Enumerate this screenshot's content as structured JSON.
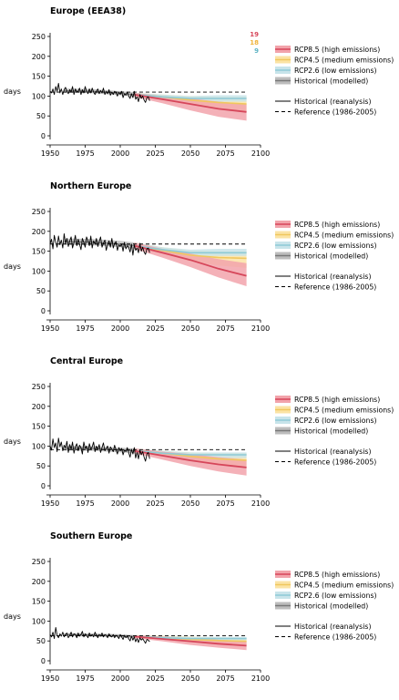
{
  "chart_data": [
    {
      "type": "line",
      "title": "Europe (EEA38)",
      "ylabel": "days",
      "xlim": [
        1950,
        2100
      ],
      "ylim": [
        0,
        250
      ],
      "xticks": [
        1950,
        1975,
        2000,
        2025,
        2050,
        2075,
        2100
      ],
      "yticks": [
        0,
        50,
        100,
        150,
        200,
        250
      ],
      "reference": 110,
      "model_counts": {
        "rcp85": "19",
        "rcp45": "18",
        "rcp26": "9"
      },
      "historical_reanalysis": {
        "x": [
          1950,
          1951,
          1952,
          1953,
          1954,
          1955,
          1956,
          1957,
          1958,
          1959,
          1960,
          1961,
          1962,
          1963,
          1964,
          1965,
          1966,
          1967,
          1968,
          1969,
          1970,
          1971,
          1972,
          1973,
          1974,
          1975,
          1976,
          1977,
          1978,
          1979,
          1980,
          1981,
          1982,
          1983,
          1984,
          1985,
          1986,
          1987,
          1988,
          1989,
          1990,
          1991,
          1992,
          1993,
          1994,
          1995,
          1996,
          1997,
          1998,
          1999,
          2000,
          2001,
          2002,
          2003,
          2004,
          2005,
          2006,
          2007,
          2008,
          2009,
          2010,
          2011,
          2012,
          2013,
          2014,
          2015,
          2016,
          2017,
          2018,
          2019,
          2020,
          2021
        ],
        "y": [
          112,
          108,
          118,
          104,
          124,
          112,
          132,
          108,
          118,
          104,
          116,
          122,
          112,
          106,
          116,
          110,
          124,
          104,
          118,
          110,
          112,
          120,
          104,
          116,
          108,
          124,
          112,
          106,
          118,
          108,
          120,
          110,
          104,
          112,
          118,
          106,
          114,
          108,
          120,
          104,
          112,
          106,
          116,
          102,
          110,
          104,
          112,
          108,
          100,
          110,
          104,
          112,
          96,
          106,
          102,
          110,
          100,
          94,
          106,
          96,
          112,
          92,
          98,
          86,
          104,
          94,
          100,
          90,
          84,
          96,
          98,
          88
        ]
      },
      "historical_modelled": {
        "x": [
          1960,
          1980,
          2000,
          2010
        ],
        "mean": [
          113,
          112,
          107,
          104
        ],
        "lower": [
          108,
          107,
          102,
          98
        ],
        "upper": [
          119,
          118,
          112,
          110
        ]
      },
      "projections": {
        "rcp85": {
          "x": [
            2010,
            2030,
            2050,
            2070,
            2090
          ],
          "mean": [
            104,
            92,
            80,
            68,
            60
          ],
          "lower": [
            98,
            82,
            64,
            48,
            38
          ],
          "upper": [
            108,
            100,
            94,
            86,
            80
          ]
        },
        "rcp45": {
          "x": [
            2010,
            2030,
            2050,
            2070,
            2090
          ],
          "mean": [
            104,
            98,
            90,
            84,
            80
          ],
          "lower": [
            98,
            90,
            78,
            70,
            62
          ],
          "upper": [
            108,
            104,
            100,
            98,
            98
          ]
        },
        "rcp26": {
          "x": [
            2010,
            2030,
            2050,
            2070,
            2090
          ],
          "mean": [
            104,
            98,
            94,
            94,
            94
          ],
          "lower": [
            98,
            92,
            86,
            86,
            86
          ],
          "upper": [
            108,
            104,
            100,
            102,
            102
          ]
        }
      }
    },
    {
      "type": "line",
      "title": "Northern Europe",
      "ylabel": "days",
      "xlim": [
        1950,
        2100
      ],
      "ylim": [
        0,
        250
      ],
      "xticks": [
        1950,
        1975,
        2000,
        2025,
        2050,
        2075,
        2100
      ],
      "yticks": [
        0,
        50,
        100,
        150,
        200,
        250
      ],
      "reference": 168,
      "historical_reanalysis": {
        "x": [
          1950,
          1951,
          1952,
          1953,
          1954,
          1955,
          1956,
          1957,
          1958,
          1959,
          1960,
          1961,
          1962,
          1963,
          1964,
          1965,
          1966,
          1967,
          1968,
          1969,
          1970,
          1971,
          1972,
          1973,
          1974,
          1975,
          1976,
          1977,
          1978,
          1979,
          1980,
          1981,
          1982,
          1983,
          1984,
          1985,
          1986,
          1987,
          1988,
          1989,
          1990,
          1991,
          1992,
          1993,
          1994,
          1995,
          1996,
          1997,
          1998,
          1999,
          2000,
          2001,
          2002,
          2003,
          2004,
          2005,
          2006,
          2007,
          2008,
          2009,
          2010,
          2011,
          2012,
          2013,
          2014,
          2015,
          2016,
          2017,
          2018,
          2019,
          2020,
          2021
        ],
        "y": [
          168,
          180,
          156,
          190,
          172,
          160,
          188,
          166,
          178,
          158,
          194,
          170,
          182,
          162,
          176,
          186,
          158,
          172,
          190,
          164,
          180,
          168,
          154,
          182,
          172,
          160,
          186,
          176,
          164,
          188,
          158,
          176,
          168,
          182,
          162,
          174,
          186,
          160,
          170,
          178,
          152,
          166,
          176,
          160,
          182,
          158,
          170,
          174,
          152,
          166,
          162,
          168,
          150,
          172,
          156,
          164,
          160,
          148,
          168,
          140,
          166,
          152,
          158,
          146,
          170,
          150,
          160,
          148,
          142,
          156,
          158,
          146
        ]
      },
      "historical_modelled": {
        "x": [
          1960,
          1980,
          2000,
          2010
        ],
        "mean": [
          174,
          173,
          168,
          164
        ],
        "lower": [
          166,
          165,
          160,
          156
        ],
        "upper": [
          182,
          181,
          176,
          172
        ]
      },
      "projections": {
        "rcp85": {
          "x": [
            2010,
            2030,
            2050,
            2070,
            2090
          ],
          "mean": [
            164,
            146,
            128,
            106,
            88
          ],
          "lower": [
            156,
            134,
            110,
            84,
            62
          ],
          "upper": [
            172,
            156,
            144,
            130,
            120
          ]
        },
        "rcp45": {
          "x": [
            2010,
            2030,
            2050,
            2070,
            2090
          ],
          "mean": [
            164,
            152,
            140,
            134,
            132
          ],
          "lower": [
            156,
            144,
            124,
            114,
            108
          ],
          "upper": [
            172,
            160,
            152,
            150,
            150
          ]
        },
        "rcp26": {
          "x": [
            2010,
            2030,
            2050,
            2070,
            2090
          ],
          "mean": [
            164,
            154,
            146,
            146,
            146
          ],
          "lower": [
            156,
            146,
            138,
            138,
            138
          ],
          "upper": [
            172,
            160,
            154,
            156,
            156
          ]
        }
      }
    },
    {
      "type": "line",
      "title": "Central Europe",
      "ylabel": "days",
      "xlim": [
        1950,
        2100
      ],
      "ylim": [
        0,
        250
      ],
      "xticks": [
        1950,
        1975,
        2000,
        2025,
        2050,
        2075,
        2100
      ],
      "yticks": [
        0,
        50,
        100,
        150,
        200,
        250
      ],
      "reference": 91,
      "historical_reanalysis": {
        "x": [
          1950,
          1951,
          1952,
          1953,
          1954,
          1955,
          1956,
          1957,
          1958,
          1959,
          1960,
          1961,
          1962,
          1963,
          1964,
          1965,
          1966,
          1967,
          1968,
          1969,
          1970,
          1971,
          1972,
          1973,
          1974,
          1975,
          1976,
          1977,
          1978,
          1979,
          1980,
          1981,
          1982,
          1983,
          1984,
          1985,
          1986,
          1987,
          1988,
          1989,
          1990,
          1991,
          1992,
          1993,
          1994,
          1995,
          1996,
          1997,
          1998,
          1999,
          2000,
          2001,
          2002,
          2003,
          2004,
          2005,
          2006,
          2007,
          2008,
          2009,
          2010,
          2011,
          2012,
          2013,
          2014,
          2015,
          2016,
          2017,
          2018,
          2019,
          2020,
          2021
        ],
        "y": [
          100,
          90,
          118,
          96,
          108,
          86,
          120,
          98,
          110,
          88,
          102,
          96,
          112,
          84,
          104,
          92,
          110,
          82,
          98,
          106,
          88,
          102,
          96,
          80,
          110,
          94,
          100,
          84,
          106,
          92,
          98,
          110,
          86,
          100,
          92,
          104,
          84,
          96,
          108,
          88,
          94,
          100,
          82,
          98,
          92,
          86,
          102,
          90,
          80,
          96,
          88,
          94,
          78,
          90,
          86,
          96,
          84,
          72,
          92,
          80,
          96,
          70,
          84,
          68,
          90,
          78,
          86,
          72,
          62,
          80,
          84,
          68
        ]
      },
      "historical_modelled": {
        "x": [
          1960,
          1980,
          2000,
          2010
        ],
        "mean": [
          95,
          94,
          90,
          88
        ],
        "lower": [
          89,
          88,
          84,
          82
        ],
        "upper": [
          101,
          100,
          96,
          94
        ]
      },
      "projections": {
        "rcp85": {
          "x": [
            2010,
            2030,
            2050,
            2070,
            2090
          ],
          "mean": [
            88,
            76,
            64,
            54,
            46
          ],
          "lower": [
            82,
            66,
            50,
            36,
            26
          ],
          "upper": [
            94,
            86,
            80,
            72,
            66
          ]
        },
        "rcp45": {
          "x": [
            2010,
            2030,
            2050,
            2070,
            2090
          ],
          "mean": [
            88,
            82,
            74,
            68,
            64
          ],
          "lower": [
            82,
            74,
            62,
            54,
            46
          ],
          "upper": [
            94,
            88,
            84,
            82,
            82
          ]
        },
        "rcp26": {
          "x": [
            2010,
            2030,
            2050,
            2070,
            2090
          ],
          "mean": [
            88,
            82,
            78,
            78,
            78
          ],
          "lower": [
            82,
            76,
            70,
            70,
            70
          ],
          "upper": [
            94,
            88,
            84,
            84,
            84
          ]
        }
      }
    },
    {
      "type": "line",
      "title": "Southern Europe",
      "ylabel": "days",
      "xlim": [
        1950,
        2100
      ],
      "ylim": [
        0,
        250
      ],
      "xticks": [
        1950,
        1975,
        2000,
        2025,
        2050,
        2075,
        2100
      ],
      "yticks": [
        0,
        50,
        100,
        150,
        200,
        250
      ],
      "reference": 63,
      "historical_reanalysis": {
        "x": [
          1950,
          1951,
          1952,
          1953,
          1954,
          1955,
          1956,
          1957,
          1958,
          1959,
          1960,
          1961,
          1962,
          1963,
          1964,
          1965,
          1966,
          1967,
          1968,
          1969,
          1970,
          1971,
          1972,
          1973,
          1974,
          1975,
          1976,
          1977,
          1978,
          1979,
          1980,
          1981,
          1982,
          1983,
          1984,
          1985,
          1986,
          1987,
          1988,
          1989,
          1990,
          1991,
          1992,
          1993,
          1994,
          1995,
          1996,
          1997,
          1998,
          1999,
          2000,
          2001,
          2002,
          2003,
          2004,
          2005,
          2006,
          2007,
          2008,
          2009,
          2010,
          2011,
          2012,
          2013,
          2014,
          2015,
          2016,
          2017,
          2018,
          2019,
          2020,
          2021
        ],
        "y": [
          66,
          60,
          72,
          56,
          84,
          64,
          58,
          68,
          62,
          72,
          60,
          66,
          70,
          58,
          64,
          72,
          60,
          68,
          66,
          58,
          70,
          62,
          66,
          74,
          60,
          68,
          64,
          58,
          70,
          62,
          66,
          60,
          72,
          64,
          58,
          66,
          62,
          70,
          60,
          66,
          64,
          58,
          68,
          62,
          60,
          66,
          58,
          64,
          62,
          56,
          66,
          60,
          54,
          64,
          58,
          62,
          56,
          50,
          62,
          52,
          60,
          48,
          56,
          46,
          58,
          52,
          56,
          50,
          44,
          54,
          52,
          48
        ]
      },
      "historical_modelled": {
        "x": [
          1960,
          1980,
          2000,
          2010
        ],
        "mean": [
          66,
          65,
          63,
          61
        ],
        "lower": [
          62,
          61,
          59,
          57
        ],
        "upper": [
          70,
          69,
          67,
          65
        ]
      },
      "projections": {
        "rcp85": {
          "x": [
            2010,
            2030,
            2050,
            2070,
            2090
          ],
          "mean": [
            61,
            55,
            49,
            43,
            38
          ],
          "lower": [
            57,
            49,
            40,
            33,
            27
          ],
          "upper": [
            65,
            61,
            57,
            53,
            49
          ]
        },
        "rcp45": {
          "x": [
            2010,
            2030,
            2050,
            2070,
            2090
          ],
          "mean": [
            61,
            58,
            54,
            51,
            49
          ],
          "lower": [
            57,
            53,
            47,
            43,
            40
          ],
          "upper": [
            65,
            63,
            61,
            59,
            58
          ]
        },
        "rcp26": {
          "x": [
            2010,
            2030,
            2050,
            2070,
            2090
          ],
          "mean": [
            61,
            58,
            56,
            56,
            56
          ],
          "lower": [
            57,
            54,
            52,
            52,
            52
          ],
          "upper": [
            65,
            62,
            60,
            60,
            60
          ]
        }
      }
    }
  ],
  "legend": {
    "rcp85": "RCP8.5 (high emissions)",
    "rcp45": "RCP4.5 (medium emissions)",
    "rcp26": "RCP2.6 (low emissions)",
    "hist_model": "Historical (modelled)",
    "reanalysis": "Historical (reanalysis)",
    "reference": "Reference (1986-2005)"
  },
  "colors": {
    "rcp85_band": "#f2a3ab",
    "rcp85_line": "#d6465a",
    "rcp45_band": "#fbe3a4",
    "rcp45_line": "#f0c75e",
    "rcp26_band": "#c8e4ea",
    "rcp26_line": "#8ecad6",
    "hist_band": "#bdbdbd",
    "hist_line": "#777777",
    "count_rcp85": "#d6465a",
    "count_rcp45": "#f0b43c",
    "count_rcp26": "#5fb4c4"
  }
}
